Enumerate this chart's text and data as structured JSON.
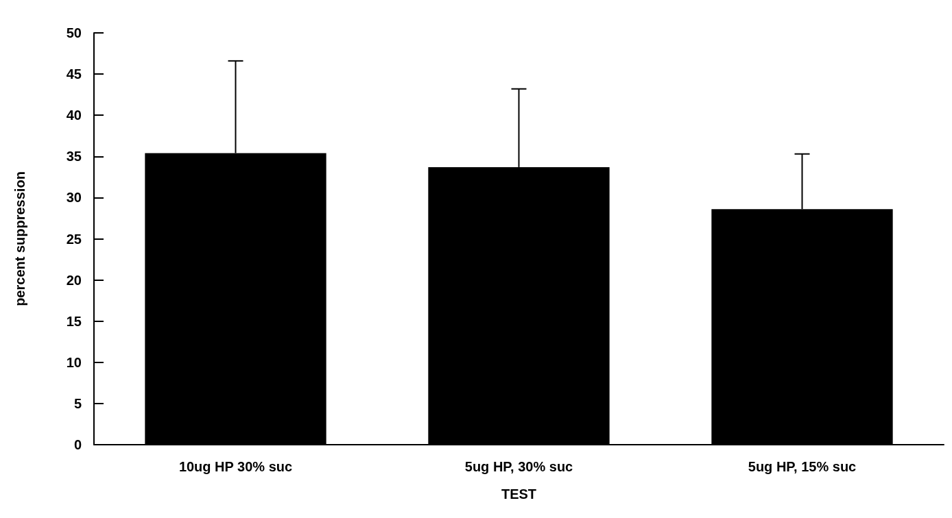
{
  "chart_data": {
    "type": "bar",
    "xlabel": "TEST",
    "ylabel": "percent suppression",
    "categories": [
      "10ug HP 30% suc",
      "5ug HP, 30% suc",
      "5ug HP, 15% suc"
    ],
    "values": [
      35.4,
      33.7,
      28.6
    ],
    "color": "#000000",
    "errors": [
      [
        35.4,
        46.6
      ],
      [
        33.7,
        43.2
      ],
      [
        28.6,
        35.3
      ]
    ],
    "ylim": [
      0,
      50
    ],
    "yticks": [
      0,
      5,
      10,
      15,
      20,
      25,
      30,
      35,
      40,
      45,
      50
    ],
    "grid": false
  }
}
